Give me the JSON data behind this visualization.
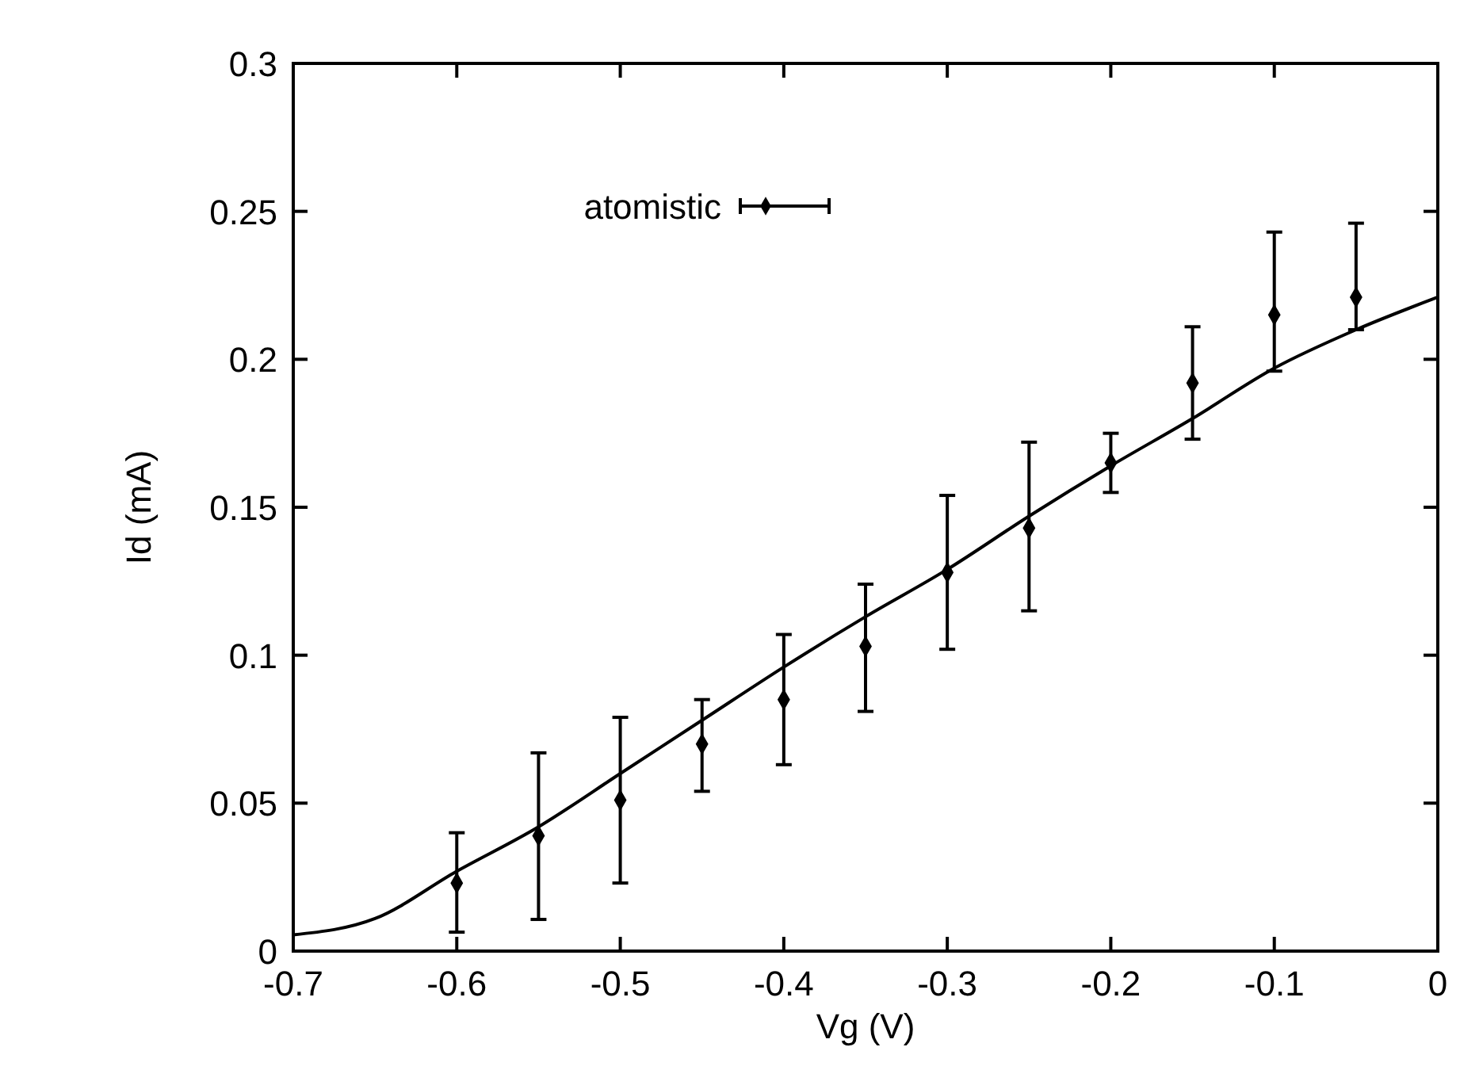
{
  "chart_data": {
    "type": "scatter",
    "xlabel": "Vg (V)",
    "ylabel": "Id (mA)",
    "xlim": [
      -0.7,
      0
    ],
    "xticks": [
      -0.7,
      -0.6,
      -0.5,
      -0.4,
      -0.3,
      -0.2,
      -0.1,
      0
    ],
    "ylim": [
      0,
      0.3
    ],
    "yticks": [
      0,
      0.05,
      0.1,
      0.15,
      0.2,
      0.25,
      0.3
    ],
    "grid": false,
    "legend": "top left",
    "marker": "diamond",
    "series": [
      {
        "type": "line",
        "color": "#000000",
        "line_style": "solid",
        "marker": "none",
        "x": [
          -0.7,
          -0.65,
          -0.6,
          -0.55,
          -0.5,
          -0.45,
          -0.4,
          -0.35,
          -0.3,
          -0.25,
          -0.2,
          -0.15,
          -0.1,
          -0.05,
          0
        ],
        "values": [
          0.0055,
          0.011,
          0.027,
          0.042,
          0.06,
          0.078,
          0.096,
          0.113,
          0.129,
          0.147,
          0.164,
          0.18,
          0.197,
          0.21,
          0.221
        ]
      },
      {
        "name": "atomistic",
        "color": "#000000",
        "x": [
          -0.6,
          -0.55,
          -0.5,
          -0.45,
          -0.4,
          -0.35,
          -0.3,
          -0.25,
          -0.2,
          -0.15,
          -0.1,
          -0.05
        ],
        "values": [
          0.023,
          0.039,
          0.051,
          0.07,
          0.085,
          0.103,
          0.128,
          0.143,
          0.165,
          0.192,
          0.215,
          0.221
        ],
        "errors": [
          [
            0.0064,
            0.04
          ],
          [
            0.0107,
            0.067
          ],
          [
            0.023,
            0.079
          ],
          [
            0.054,
            0.085
          ],
          [
            0.063,
            0.107
          ],
          [
            0.081,
            0.124
          ],
          [
            0.102,
            0.154
          ],
          [
            0.115,
            0.172
          ],
          [
            0.155,
            0.175
          ],
          [
            0.173,
            0.211
          ],
          [
            0.196,
            0.243
          ],
          [
            0.21,
            0.246
          ]
        ]
      }
    ]
  }
}
